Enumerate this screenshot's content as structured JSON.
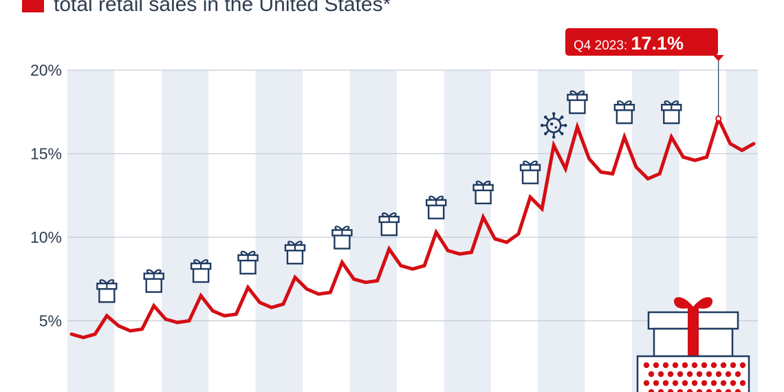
{
  "legend": {
    "label": "total retail sales in the United States*",
    "color": "#d40e14"
  },
  "callout": {
    "prefix": "Q4 2023: ",
    "value": "17.1%"
  },
  "chart_data": {
    "type": "line",
    "ylim": [
      0,
      20
    ],
    "y_ticks": [
      {
        "value": 5,
        "label": "5%"
      },
      {
        "value": 10,
        "label": "10%"
      },
      {
        "value": 15,
        "label": "15%"
      },
      {
        "value": 20,
        "label": "20%"
      }
    ],
    "grid": true,
    "series": [
      {
        "color": "#d40e14",
        "values": [
          4.2,
          4.0,
          4.2,
          5.3,
          4.7,
          4.4,
          4.5,
          5.9,
          5.1,
          4.9,
          5.0,
          6.5,
          5.6,
          5.3,
          5.4,
          7.0,
          6.1,
          5.8,
          6.0,
          7.6,
          6.9,
          6.6,
          6.7,
          8.5,
          7.5,
          7.3,
          7.4,
          9.3,
          8.3,
          8.1,
          8.3,
          10.3,
          9.2,
          9.0,
          9.1,
          11.2,
          9.9,
          9.7,
          10.2,
          12.4,
          11.7,
          15.5,
          14.1,
          16.6,
          14.7,
          13.9,
          13.8,
          16.0,
          14.2,
          13.5,
          13.8,
          16.0,
          14.8,
          14.6,
          14.8,
          17.1,
          15.6,
          15.2,
          15.6
        ]
      }
    ],
    "holiday_icon_indices": [
      3,
      7,
      11,
      15,
      19,
      23,
      27,
      31,
      35,
      39,
      43,
      47,
      51
    ],
    "covid_icon_index": 41,
    "highlight_index": 55,
    "icon_colors": {
      "gift": "#1f3a5f",
      "virus": "#1f3a5f"
    }
  }
}
